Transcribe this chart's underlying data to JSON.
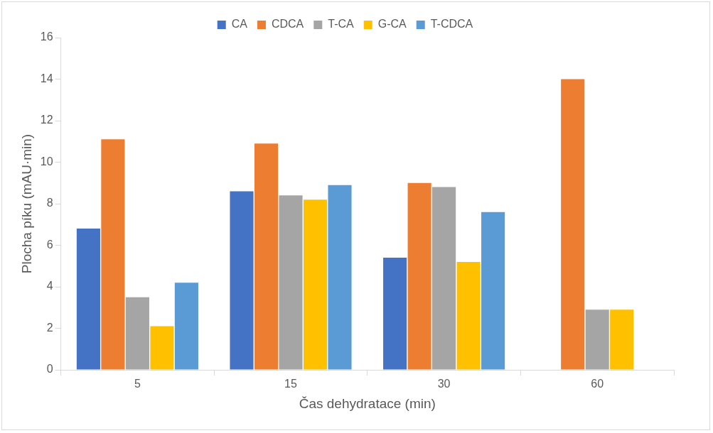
{
  "chart_data": {
    "type": "bar",
    "xlabel": "Čas dehydratace (min)",
    "ylabel": "Plocha píku (mAU·min)",
    "categories": [
      "5",
      "15",
      "30",
      "60"
    ],
    "series": [
      {
        "name": "CA",
        "color": "#4472c4",
        "values": [
          6.8,
          8.6,
          5.4,
          null
        ]
      },
      {
        "name": "CDCA",
        "color": "#ed7d31",
        "values": [
          11.1,
          10.9,
          9.0,
          14.0
        ]
      },
      {
        "name": "T-CA",
        "color": "#a5a5a5",
        "values": [
          3.5,
          8.4,
          8.8,
          2.9
        ]
      },
      {
        "name": "G-CA",
        "color": "#ffc000",
        "values": [
          2.1,
          8.2,
          5.2,
          2.9
        ]
      },
      {
        "name": "T-CDCA",
        "color": "#5b9bd5",
        "values": [
          4.2,
          8.9,
          7.6,
          null
        ]
      }
    ],
    "ylim": [
      0,
      16
    ],
    "yticks": [
      0,
      2,
      4,
      6,
      8,
      10,
      12,
      14,
      16
    ],
    "grid": false,
    "legend": "top"
  }
}
